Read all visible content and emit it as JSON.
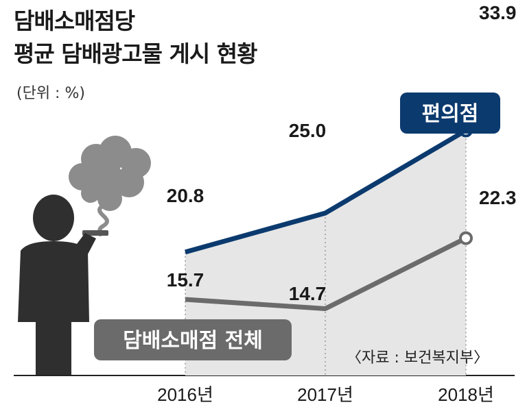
{
  "title_line1": "담배소매점당",
  "title_line2": "평균 담배광고물 게시 현황",
  "unit": "(단위 : %)",
  "source": "〈자료 : 보건복지부〉",
  "colors": {
    "convenience": "#0b3a6e",
    "all_retail": "#6b6b6b",
    "area_fill": "#e6e6e6",
    "label_convenience_bg": "#0b3a6e",
    "label_all_bg": "#6b6b6b"
  },
  "chart_data": {
    "type": "line",
    "categories": [
      "2016년",
      "2017년",
      "2018년"
    ],
    "series": [
      {
        "name": "편의점",
        "values": [
          20.8,
          25.0,
          33.9
        ]
      },
      {
        "name": "담배소매점 전체",
        "values": [
          15.7,
          14.7,
          22.3
        ]
      }
    ],
    "data_labels": [
      [
        "20.8",
        "25.0",
        "33.9"
      ],
      [
        "15.7",
        "14.7",
        "22.3"
      ]
    ],
    "grid": false,
    "legend": "inline labels"
  }
}
